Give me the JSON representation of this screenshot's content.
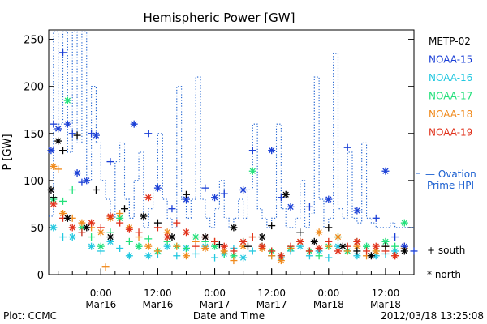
{
  "chart_data": {
    "type": "scatter",
    "title": "Hemispheric Power [GW]",
    "ylabel": "P [GW]",
    "xlabel": "Date and Time",
    "ylim": [
      0,
      260
    ],
    "yticks": [
      0,
      50,
      100,
      150,
      200,
      250
    ],
    "x_range_hours": [
      0,
      57
    ],
    "xticks": [
      {
        "t": 18,
        "time": "0:00",
        "date": "Mar16"
      },
      {
        "t": 30,
        "time": "12:00",
        "date": "Mar16"
      },
      {
        "t": 42,
        "time": "0:00",
        "date": "Mar17"
      },
      {
        "t": 54,
        "time": "12:00",
        "date": "Mar17"
      },
      {
        "t": 66,
        "time": "0:00",
        "date": "Mar18"
      },
      {
        "t": 78,
        "time": "12:00",
        "date": "Mar18"
      }
    ],
    "x_axis_hours_total": [
      7,
      84
    ],
    "footer_left": "Plot: CCMC",
    "footer_right": "2012/03/18 13:25:08",
    "legend": {
      "satellites": [
        {
          "name": "METP-02",
          "color": "#000000"
        },
        {
          "name": "NOAA-15",
          "color": "#1a3fd6"
        },
        {
          "name": "NOAA-16",
          "color": "#22c8e0"
        },
        {
          "name": "NOAA-17",
          "color": "#22e07a"
        },
        {
          "name": "NOAA-18",
          "color": "#f08a1c"
        },
        {
          "name": "NOAA-19",
          "color": "#e0301a"
        }
      ],
      "ovation_label_1": "— Ovation",
      "ovation_label_2": "Prime HPI",
      "ovation_color": "#1a5fd0",
      "south_label": "+ south",
      "north_label": "* north"
    },
    "ovation_series": [
      [
        7,
        62
      ],
      [
        8,
        258
      ],
      [
        9,
        160
      ],
      [
        10,
        258
      ],
      [
        11,
        130
      ],
      [
        12,
        258
      ],
      [
        13,
        140
      ],
      [
        14,
        258
      ],
      [
        15,
        100
      ],
      [
        16,
        200
      ],
      [
        17,
        140
      ],
      [
        18,
        100
      ],
      [
        19,
        80
      ],
      [
        20,
        60
      ],
      [
        21,
        120
      ],
      [
        22,
        140
      ],
      [
        23,
        80
      ],
      [
        24,
        60
      ],
      [
        25,
        100
      ],
      [
        26,
        130
      ],
      [
        27,
        50
      ],
      [
        28,
        70
      ],
      [
        29,
        90
      ],
      [
        30,
        150
      ],
      [
        31,
        80
      ],
      [
        32,
        60
      ],
      [
        33,
        50
      ],
      [
        34,
        200
      ],
      [
        35,
        80
      ],
      [
        36,
        60
      ],
      [
        37,
        80
      ],
      [
        38,
        210
      ],
      [
        39,
        80
      ],
      [
        40,
        60
      ],
      [
        41,
        50
      ],
      [
        42,
        70
      ],
      [
        43,
        100
      ],
      [
        44,
        60
      ],
      [
        45,
        50
      ],
      [
        46,
        60
      ],
      [
        47,
        80
      ],
      [
        48,
        60
      ],
      [
        49,
        90
      ],
      [
        50,
        160
      ],
      [
        51,
        70
      ],
      [
        52,
        60
      ],
      [
        53,
        50
      ],
      [
        54,
        60
      ],
      [
        55,
        160
      ],
      [
        56,
        70
      ],
      [
        57,
        50
      ],
      [
        58,
        50
      ],
      [
        59,
        60
      ],
      [
        60,
        100
      ],
      [
        61,
        50
      ],
      [
        62,
        65
      ],
      [
        63,
        210
      ],
      [
        64,
        80
      ],
      [
        65,
        50
      ],
      [
        66,
        60
      ],
      [
        67,
        235
      ],
      [
        68,
        70
      ],
      [
        69,
        60
      ],
      [
        70,
        130
      ],
      [
        71,
        60
      ],
      [
        72,
        55
      ],
      [
        73,
        140
      ],
      [
        74,
        60
      ],
      [
        75,
        55
      ],
      [
        76,
        50
      ],
      [
        77,
        50
      ],
      [
        78,
        50
      ],
      [
        79,
        55
      ],
      [
        80,
        50
      ],
      [
        81,
        50
      ],
      [
        82,
        50
      ],
      [
        83,
        50
      ],
      [
        84,
        50
      ]
    ],
    "noaa15_points": [
      [
        7.5,
        132
      ],
      [
        8,
        160
      ],
      [
        9,
        155
      ],
      [
        10,
        236
      ],
      [
        11,
        160
      ],
      [
        12,
        150
      ],
      [
        13,
        108
      ],
      [
        14,
        98
      ],
      [
        15,
        100
      ],
      [
        16,
        150
      ],
      [
        17,
        148
      ],
      [
        20,
        120
      ],
      [
        25,
        160
      ],
      [
        28,
        150
      ],
      [
        30,
        92
      ],
      [
        33,
        70
      ],
      [
        36,
        80
      ],
      [
        40,
        92
      ],
      [
        42,
        82
      ],
      [
        44,
        86
      ],
      [
        48,
        90
      ],
      [
        50,
        132
      ],
      [
        54,
        132
      ],
      [
        56,
        82
      ],
      [
        58,
        72
      ],
      [
        62,
        72
      ],
      [
        66,
        80
      ],
      [
        70,
        135
      ],
      [
        72,
        68
      ],
      [
        76,
        60
      ],
      [
        78,
        110
      ],
      [
        80,
        40
      ],
      [
        82,
        30
      ],
      [
        84,
        25
      ]
    ],
    "black_points": [
      [
        7.5,
        90
      ],
      [
        8,
        82
      ],
      [
        9,
        142
      ],
      [
        10,
        132
      ],
      [
        11,
        60
      ],
      [
        13,
        148
      ],
      [
        15,
        50
      ],
      [
        17,
        90
      ],
      [
        20,
        40
      ],
      [
        23,
        70
      ],
      [
        27,
        62
      ],
      [
        30,
        55
      ],
      [
        33,
        40
      ],
      [
        36,
        85
      ],
      [
        40,
        40
      ],
      [
        43,
        32
      ],
      [
        46,
        50
      ],
      [
        49,
        30
      ],
      [
        52,
        40
      ],
      [
        54,
        52
      ],
      [
        57,
        85
      ],
      [
        60,
        45
      ],
      [
        63,
        35
      ],
      [
        66,
        50
      ],
      [
        69,
        30
      ],
      [
        72,
        25
      ],
      [
        75,
        20
      ],
      [
        78,
        30
      ],
      [
        82,
        25
      ]
    ],
    "cyan_points": [
      [
        8,
        50
      ],
      [
        10,
        40
      ],
      [
        12,
        40
      ],
      [
        14,
        45
      ],
      [
        16,
        30
      ],
      [
        18,
        25
      ],
      [
        20,
        35
      ],
      [
        22,
        28
      ],
      [
        24,
        20
      ],
      [
        26,
        30
      ],
      [
        28,
        20
      ],
      [
        30,
        22
      ],
      [
        32,
        30
      ],
      [
        34,
        20
      ],
      [
        36,
        28
      ],
      [
        38,
        22
      ],
      [
        40,
        30
      ],
      [
        42,
        18
      ],
      [
        44,
        22
      ],
      [
        46,
        28
      ],
      [
        48,
        18
      ],
      [
        50,
        25
      ],
      [
        52,
        30
      ],
      [
        54,
        20
      ],
      [
        56,
        18
      ],
      [
        58,
        25
      ],
      [
        60,
        30
      ],
      [
        62,
        20
      ],
      [
        64,
        25
      ],
      [
        66,
        18
      ],
      [
        68,
        30
      ],
      [
        70,
        25
      ],
      [
        72,
        20
      ],
      [
        74,
        30
      ],
      [
        76,
        20
      ],
      [
        78,
        22
      ],
      [
        80,
        25
      ],
      [
        82,
        28
      ]
    ],
    "green_points": [
      [
        8,
        80
      ],
      [
        10,
        78
      ],
      [
        11,
        185
      ],
      [
        12,
        90
      ],
      [
        14,
        50
      ],
      [
        16,
        40
      ],
      [
        18,
        30
      ],
      [
        20,
        45
      ],
      [
        22,
        60
      ],
      [
        24,
        35
      ],
      [
        26,
        30
      ],
      [
        28,
        38
      ],
      [
        30,
        25
      ],
      [
        32,
        35
      ],
      [
        34,
        30
      ],
      [
        36,
        28
      ],
      [
        38,
        40
      ],
      [
        40,
        35
      ],
      [
        42,
        30
      ],
      [
        44,
        22
      ],
      [
        46,
        20
      ],
      [
        48,
        35
      ],
      [
        50,
        110
      ],
      [
        52,
        30
      ],
      [
        54,
        25
      ],
      [
        56,
        20
      ],
      [
        58,
        28
      ],
      [
        60,
        35
      ],
      [
        62,
        25
      ],
      [
        64,
        20
      ],
      [
        66,
        30
      ],
      [
        68,
        40
      ],
      [
        70,
        25
      ],
      [
        72,
        35
      ],
      [
        74,
        30
      ],
      [
        76,
        25
      ],
      [
        78,
        35
      ],
      [
        80,
        30
      ],
      [
        82,
        55
      ]
    ],
    "orange_points": [
      [
        8,
        115
      ],
      [
        9,
        112
      ],
      [
        10,
        65
      ],
      [
        12,
        60
      ],
      [
        14,
        55
      ],
      [
        16,
        50
      ],
      [
        18,
        45
      ],
      [
        19,
        8
      ],
      [
        20,
        60
      ],
      [
        22,
        65
      ],
      [
        24,
        50
      ],
      [
        26,
        40
      ],
      [
        28,
        30
      ],
      [
        30,
        25
      ],
      [
        32,
        45
      ],
      [
        34,
        30
      ],
      [
        36,
        20
      ],
      [
        38,
        35
      ],
      [
        40,
        28
      ],
      [
        42,
        35
      ],
      [
        44,
        25
      ],
      [
        46,
        15
      ],
      [
        48,
        30
      ],
      [
        50,
        40
      ],
      [
        52,
        28
      ],
      [
        54,
        20
      ],
      [
        56,
        15
      ],
      [
        58,
        28
      ],
      [
        60,
        35
      ],
      [
        62,
        25
      ],
      [
        64,
        45
      ],
      [
        66,
        30
      ],
      [
        68,
        40
      ],
      [
        70,
        25
      ],
      [
        72,
        30
      ],
      [
        74,
        20
      ],
      [
        76,
        25
      ],
      [
        78,
        30
      ],
      [
        80,
        20
      ],
      [
        82,
        28
      ]
    ],
    "red_points": [
      [
        8,
        75
      ],
      [
        10,
        60
      ],
      [
        12,
        50
      ],
      [
        14,
        45
      ],
      [
        16,
        55
      ],
      [
        18,
        50
      ],
      [
        20,
        62
      ],
      [
        22,
        55
      ],
      [
        24,
        48
      ],
      [
        26,
        45
      ],
      [
        28,
        82
      ],
      [
        30,
        50
      ],
      [
        32,
        40
      ],
      [
        34,
        55
      ],
      [
        36,
        45
      ],
      [
        38,
        30
      ],
      [
        40,
        40
      ],
      [
        42,
        35
      ],
      [
        44,
        30
      ],
      [
        46,
        25
      ],
      [
        48,
        35
      ],
      [
        50,
        40
      ],
      [
        52,
        30
      ],
      [
        54,
        25
      ],
      [
        56,
        20
      ],
      [
        58,
        30
      ],
      [
        60,
        35
      ],
      [
        62,
        25
      ],
      [
        64,
        28
      ],
      [
        66,
        35
      ],
      [
        68,
        25
      ],
      [
        70,
        30
      ],
      [
        72,
        35
      ],
      [
        74,
        25
      ],
      [
        76,
        30
      ],
      [
        78,
        25
      ],
      [
        80,
        20
      ],
      [
        82,
        30
      ]
    ]
  }
}
